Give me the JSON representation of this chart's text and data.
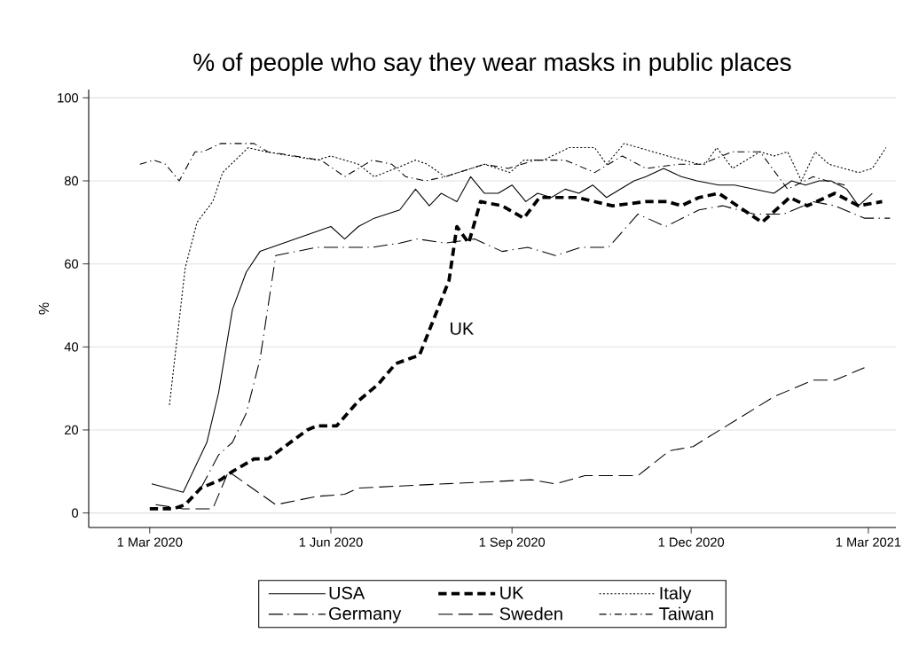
{
  "chart_data": {
    "type": "line",
    "title": "% of people who say they wear masks in public places",
    "ylabel": "%",
    "xlim": [
      "2020-01-30",
      "2021-03-15"
    ],
    "ylim": [
      -3.5,
      102
    ],
    "xticks": [
      {
        "value": "2020-03-01",
        "label": "1 Mar 2020"
      },
      {
        "value": "2020-06-01",
        "label": "1 Jun 2020"
      },
      {
        "value": "2020-09-01",
        "label": "1 Sep 2020"
      },
      {
        "value": "2020-12-01",
        "label": "1 Dec 2020"
      },
      {
        "value": "2021-03-01",
        "label": "1 Mar 2021"
      }
    ],
    "yticks": [
      0,
      20,
      40,
      60,
      80,
      100
    ],
    "grid": "y",
    "legend": "bottom",
    "marker": "none",
    "annotations": [
      "UK"
    ],
    "series": [
      {
        "name": "USA",
        "color": "#000000",
        "line_style": "solid",
        "x": [
          "2020-03-02",
          "2020-03-18",
          "2020-03-30",
          "2020-04-05",
          "2020-04-12",
          "2020-04-19",
          "2020-04-26",
          "2020-06-01",
          "2020-06-08",
          "2020-06-15",
          "2020-06-23",
          "2020-07-06",
          "2020-07-14",
          "2020-07-21",
          "2020-07-27",
          "2020-08-04",
          "2020-08-11",
          "2020-08-18",
          "2020-08-25",
          "2020-09-01",
          "2020-09-08",
          "2020-09-14",
          "2020-09-21",
          "2020-09-28",
          "2020-10-05",
          "2020-10-12",
          "2020-10-19",
          "2020-11-02",
          "2020-11-08",
          "2020-11-17",
          "2020-11-26",
          "2020-12-04",
          "2020-12-15",
          "2020-12-23",
          "2021-01-12",
          "2021-01-21",
          "2021-01-28",
          "2021-02-04",
          "2021-02-10",
          "2021-02-18",
          "2021-02-24",
          "2021-03-03"
        ],
        "values": [
          7,
          5,
          17,
          29,
          49,
          58,
          63,
          69,
          66,
          69,
          71,
          73,
          78,
          74,
          77,
          75,
          81,
          77,
          77,
          79,
          75,
          77,
          76,
          78,
          77,
          79,
          76,
          80,
          81,
          83,
          81,
          80,
          79,
          79,
          77,
          80,
          79,
          80,
          80,
          78,
          74,
          77
        ]
      },
      {
        "name": "UK",
        "color": "#000000",
        "line_style": "heavy dashed",
        "x": [
          "2020-03-01",
          "2020-03-13",
          "2020-03-19",
          "2020-03-27",
          "2020-04-06",
          "2020-04-12",
          "2020-04-23",
          "2020-04-30",
          "2020-05-20",
          "2020-05-25",
          "2020-06-04",
          "2020-06-15",
          "2020-06-25",
          "2020-07-04",
          "2020-07-16",
          "2020-07-31",
          "2020-08-04",
          "2020-08-10",
          "2020-08-16",
          "2020-08-27",
          "2020-09-07",
          "2020-09-15",
          "2020-10-04",
          "2020-10-22",
          "2020-11-08",
          "2020-11-19",
          "2020-11-26",
          "2020-12-05",
          "2020-12-15",
          "2021-01-06",
          "2021-01-20",
          "2021-01-29",
          "2021-02-12",
          "2021-02-24",
          "2021-03-08"
        ],
        "values": [
          1,
          1,
          2,
          6,
          8,
          10,
          13,
          13,
          20,
          21,
          21,
          27,
          31,
          36,
          38,
          56,
          69,
          65,
          75,
          74,
          71,
          76,
          76,
          74,
          75,
          75,
          74,
          76,
          77,
          70,
          76,
          74,
          77,
          74,
          75
        ]
      },
      {
        "name": "Italy",
        "color": "#000000",
        "line_style": "dotted",
        "x": [
          "2020-03-11",
          "2020-03-19",
          "2020-03-25",
          "2020-04-02",
          "2020-04-07",
          "2020-04-20",
          "2020-04-29",
          "2020-05-25",
          "2020-06-01",
          "2020-06-15",
          "2020-06-23",
          "2020-07-04",
          "2020-07-14",
          "2020-07-20",
          "2020-07-29",
          "2020-08-18",
          "2020-08-31",
          "2020-09-07",
          "2020-09-17",
          "2020-09-30",
          "2020-10-13",
          "2020-10-19",
          "2020-10-28",
          "2020-11-19",
          "2020-12-05",
          "2020-12-08",
          "2020-12-14",
          "2020-12-22",
          "2021-01-05",
          "2021-01-12",
          "2021-01-19",
          "2021-01-26",
          "2021-02-02",
          "2021-02-09",
          "2021-02-24",
          "2021-03-03",
          "2021-03-10"
        ],
        "values": [
          26,
          59,
          70,
          75,
          82,
          88,
          87,
          85,
          86,
          84,
          81,
          83,
          85,
          84,
          81,
          84,
          82,
          85,
          85,
          88,
          88,
          84,
          89,
          86,
          84,
          84,
          88,
          83,
          87,
          86,
          87,
          80,
          87,
          84,
          82,
          83,
          88
        ]
      },
      {
        "name": "Germany",
        "color": "#000000",
        "line_style": "longdashdot",
        "x": [
          "2020-03-27",
          "2020-04-05",
          "2020-04-12",
          "2020-04-19",
          "2020-04-26",
          "2020-05-04",
          "2020-05-25",
          "2020-06-22",
          "2020-07-06",
          "2020-07-15",
          "2020-07-29",
          "2020-08-13",
          "2020-08-27",
          "2020-09-09",
          "2020-09-23",
          "2020-10-06",
          "2020-10-20",
          "2020-11-04",
          "2020-11-18",
          "2020-12-05",
          "2020-12-17",
          "2021-01-02",
          "2021-01-17",
          "2021-02-01",
          "2021-02-12",
          "2021-02-27",
          "2021-03-12"
        ],
        "values": [
          6,
          14,
          17,
          24,
          37,
          62,
          64,
          64,
          65,
          66,
          65,
          66,
          63,
          64,
          62,
          64,
          64,
          72,
          69,
          73,
          74,
          72,
          72,
          75,
          74,
          71,
          71
        ]
      },
      {
        "name": "Sweden",
        "color": "#000000",
        "line_style": "longdashed",
        "x": [
          "2020-03-04",
          "2020-03-18",
          "2020-04-02",
          "2020-04-10",
          "2020-05-04",
          "2020-05-25",
          "2020-06-08",
          "2020-06-15",
          "2020-07-06",
          "2020-09-11",
          "2020-09-23",
          "2020-10-08",
          "2020-11-04",
          "2020-11-20",
          "2020-12-02",
          "2021-01-12",
          "2021-02-01",
          "2021-02-12",
          "2021-02-27"
        ],
        "values": [
          2,
          1,
          1,
          10,
          2,
          4,
          4.5,
          6,
          6.5,
          8,
          7,
          9,
          9,
          15,
          16,
          28,
          32,
          32,
          35
        ]
      },
      {
        "name": "Taiwan",
        "color": "#000000",
        "line_style": "dashdot",
        "x": [
          "2020-02-25",
          "2020-03-03",
          "2020-03-09",
          "2020-03-16",
          "2020-03-24",
          "2020-03-28",
          "2020-04-06",
          "2020-04-13",
          "2020-04-23",
          "2020-04-30",
          "2020-05-27",
          "2020-06-08",
          "2020-06-22",
          "2020-07-02",
          "2020-07-09",
          "2020-07-19",
          "2020-07-29",
          "2020-08-18",
          "2020-08-30",
          "2020-09-13",
          "2020-09-28",
          "2020-10-13",
          "2020-10-27",
          "2020-11-08",
          "2020-11-25",
          "2020-12-06",
          "2020-12-22",
          "2021-01-05",
          "2021-01-19",
          "2021-02-01",
          "2021-02-08",
          "2021-02-17"
        ],
        "values": [
          84,
          85,
          84,
          80,
          87,
          87,
          89,
          89,
          89,
          87,
          85,
          81,
          85,
          84,
          81,
          80,
          81,
          84,
          83,
          85,
          85,
          82,
          86,
          83,
          84,
          84,
          87,
          87,
          78,
          81,
          80,
          79
        ]
      }
    ]
  }
}
